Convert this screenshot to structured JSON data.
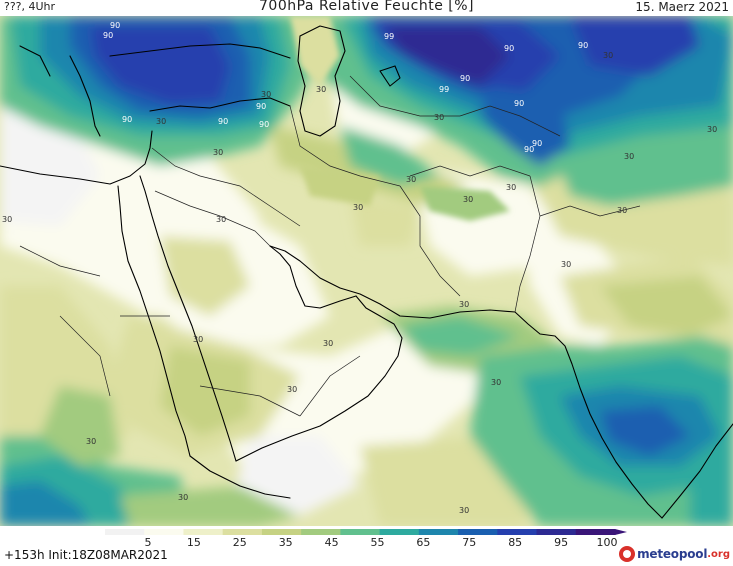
{
  "header": {
    "left_text": "???, 4Uhr",
    "title": "700hPa Relative Feuchte [%]",
    "date": "15. Maerz 2021"
  },
  "footer": {
    "run_info": "+153h  Init:18Z08MAR2021",
    "logo_name": "meteopool",
    "logo_tld": ".org"
  },
  "colorbar": {
    "ticks": [
      "5",
      "15",
      "25",
      "35",
      "45",
      "55",
      "65",
      "75",
      "85",
      "95",
      "100"
    ],
    "colors": [
      "#f2f2f2",
      "#fbfbef",
      "#eef0c9",
      "#dcdfa0",
      "#c6d283",
      "#a2cb7f",
      "#61c08e",
      "#2eaa9f",
      "#1e86ad",
      "#1a5fb0",
      "#253fae",
      "#2d2a92",
      "#3a1578"
    ]
  },
  "map": {
    "contour_labels": {
      "l01": "90",
      "l02": "90",
      "l03": "90",
      "l04": "90",
      "l05": "90",
      "l06": "90",
      "l07": "90",
      "l08": "90",
      "l09": "90",
      "l10": "90",
      "l11": "90",
      "l12": "90",
      "l13": "99",
      "l14": "99",
      "l15": "30",
      "l16": "30",
      "l17": "30",
      "l18": "30",
      "l19": "30",
      "l20": "30",
      "l21": "30",
      "l22": "30",
      "l23": "30",
      "l24": "30",
      "l25": "30",
      "l26": "30",
      "l27": "30",
      "l28": "30",
      "l29": "30",
      "l30": "30",
      "l31": "30",
      "l32": "30",
      "l33": "30",
      "l34": "30",
      "l35": "30",
      "l36": "30",
      "l37": "30",
      "l38": "30"
    }
  }
}
